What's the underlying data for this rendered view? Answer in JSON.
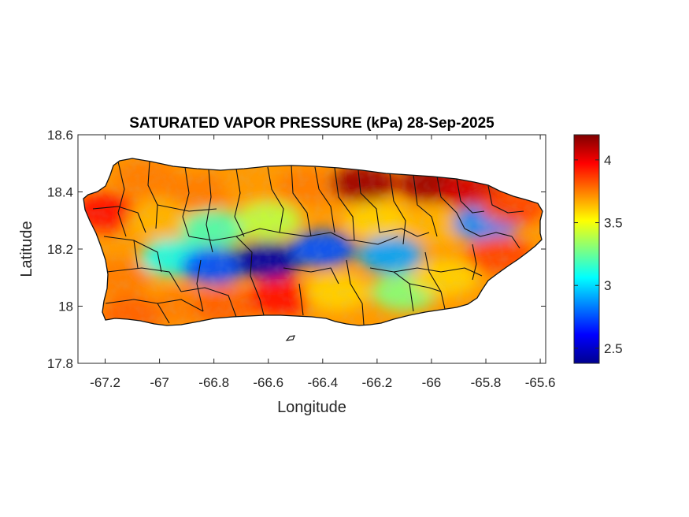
{
  "chart_data": {
    "type": "heatmap",
    "title": "SATURATED VAPOR PRESSURE (kPa) 28-Sep-2025",
    "xlabel": "Longitude",
    "ylabel": "Latitude",
    "xlim": [
      -67.3,
      -65.58
    ],
    "ylim": [
      17.8,
      18.6
    ],
    "xticks": [
      -67.2,
      -67,
      -66.8,
      -66.6,
      -66.4,
      -66.2,
      -66,
      -65.8,
      -65.6
    ],
    "xtick_labels": [
      "-67.2",
      "-67",
      "-66.8",
      "-66.6",
      "-66.4",
      "-66.2",
      "-66",
      "-65.8",
      "-65.6"
    ],
    "yticks": [
      17.8,
      18,
      18.2,
      18.4,
      18.6
    ],
    "ytick_labels": [
      "17.8",
      "18",
      "18.2",
      "18.4",
      "18.6"
    ],
    "colorbar": {
      "colormap": "jet",
      "range": [
        2.38,
        4.2
      ],
      "ticks": [
        2.5,
        3,
        3.5,
        4
      ],
      "tick_labels": [
        "2.5",
        "3",
        "3.5",
        "4"
      ]
    },
    "grid": false,
    "legend": "none",
    "data_points": [
      {
        "lon": -67.2,
        "lat": 18.33,
        "value": 3.95
      },
      {
        "lon": -67.15,
        "lat": 18.1,
        "value": 3.75
      },
      {
        "lon": -67.1,
        "lat": 17.97,
        "value": 3.8
      },
      {
        "lon": -67.05,
        "lat": 18.45,
        "value": 3.75
      },
      {
        "lon": -67.0,
        "lat": 18.3,
        "value": 3.65
      },
      {
        "lon": -66.95,
        "lat": 18.17,
        "value": 3.1
      },
      {
        "lon": -66.9,
        "lat": 18.0,
        "value": 3.75
      },
      {
        "lon": -66.85,
        "lat": 18.4,
        "value": 3.75
      },
      {
        "lon": -66.8,
        "lat": 18.27,
        "value": 3.2
      },
      {
        "lon": -66.8,
        "lat": 18.14,
        "value": 2.75
      },
      {
        "lon": -66.75,
        "lat": 18.0,
        "value": 3.8
      },
      {
        "lon": -66.65,
        "lat": 18.42,
        "value": 3.7
      },
      {
        "lon": -66.6,
        "lat": 18.3,
        "value": 3.4
      },
      {
        "lon": -66.6,
        "lat": 18.16,
        "value": 2.45
      },
      {
        "lon": -66.55,
        "lat": 18.03,
        "value": 3.95
      },
      {
        "lon": -66.45,
        "lat": 18.42,
        "value": 3.75
      },
      {
        "lon": -66.4,
        "lat": 18.2,
        "value": 2.75
      },
      {
        "lon": -66.35,
        "lat": 18.05,
        "value": 3.6
      },
      {
        "lon": -66.25,
        "lat": 18.43,
        "value": 4.15
      },
      {
        "lon": -66.2,
        "lat": 18.3,
        "value": 3.6
      },
      {
        "lon": -66.15,
        "lat": 18.18,
        "value": 2.9
      },
      {
        "lon": -66.1,
        "lat": 18.05,
        "value": 3.3
      },
      {
        "lon": -66.0,
        "lat": 18.43,
        "value": 4.15
      },
      {
        "lon": -65.98,
        "lat": 18.28,
        "value": 3.65
      },
      {
        "lon": -65.95,
        "lat": 18.1,
        "value": 3.6
      },
      {
        "lon": -65.85,
        "lat": 18.4,
        "value": 4.05
      },
      {
        "lon": -65.8,
        "lat": 18.29,
        "value": 2.85
      },
      {
        "lon": -65.75,
        "lat": 18.18,
        "value": 3.85
      },
      {
        "lon": -65.7,
        "lat": 18.35,
        "value": 3.85
      }
    ]
  }
}
